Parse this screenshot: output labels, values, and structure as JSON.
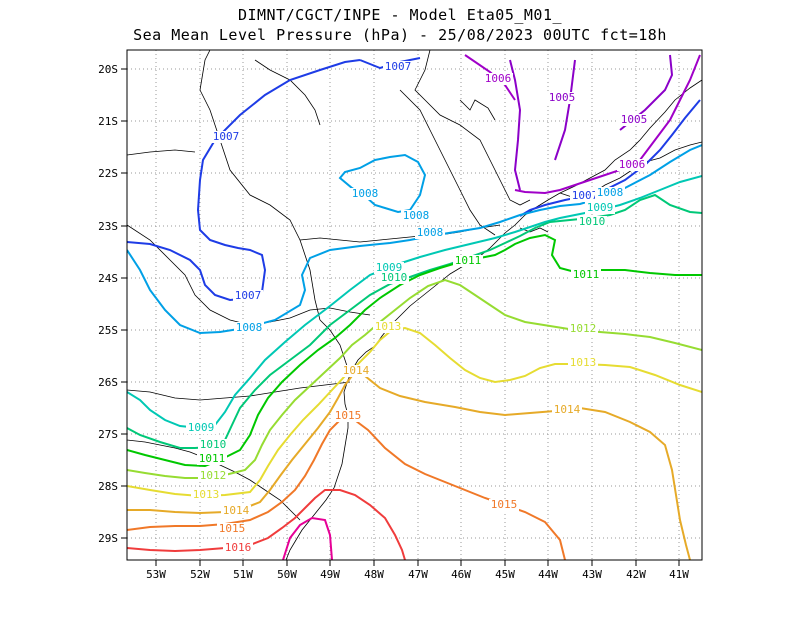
{
  "title_line1": "DIMNT/CGCT/INPE -  Model Eta05_M01_",
  "title_line2": "Sea Mean Level Pressure (hPa) - 25/08/2023 00UTC fct=18h",
  "axes": {
    "lon_ticks": [
      "53W",
      "52W",
      "51W",
      "50W",
      "49W",
      "48W",
      "47W",
      "46W",
      "45W",
      "44W",
      "43W",
      "42W",
      "41W"
    ],
    "lat_ticks": [
      "20S",
      "21S",
      "22S",
      "23S",
      "24S",
      "25S",
      "26S",
      "27S",
      "28S",
      "29S"
    ]
  },
  "contour_levels": [
    {
      "value": "1005",
      "color": "#8b00c8"
    },
    {
      "value": "1006",
      "color": "#a000c8"
    },
    {
      "value": "1007",
      "color": "#1e3ce6"
    },
    {
      "value": "1008",
      "color": "#00a0e6"
    },
    {
      "value": "1009",
      "color": "#00c8b4"
    },
    {
      "value": "1010",
      "color": "#00c878"
    },
    {
      "value": "1011",
      "color": "#00c800"
    },
    {
      "value": "1012",
      "color": "#96dc32"
    },
    {
      "value": "1013",
      "color": "#e6dc32"
    },
    {
      "value": "1014",
      "color": "#e6aa28"
    },
    {
      "value": "1015",
      "color": "#f07828"
    },
    {
      "value": "1016",
      "color": "#f03c3c"
    },
    {
      "value": "1017",
      "color": "#e60096"
    }
  ],
  "contour_labels": [
    {
      "text": "1007",
      "level": "1007"
    },
    {
      "text": "1006",
      "level": "1006"
    },
    {
      "text": "1005",
      "level": "1005"
    },
    {
      "text": "1005",
      "level": "1005"
    },
    {
      "text": "1006",
      "level": "1006"
    },
    {
      "text": "1007",
      "level": "1007"
    },
    {
      "text": "1007",
      "level": "1007"
    },
    {
      "text": "1008",
      "level": "1008"
    },
    {
      "text": "1008",
      "level": "1008"
    },
    {
      "text": "1008",
      "level": "1008"
    },
    {
      "text": "1008",
      "level": "1008"
    },
    {
      "text": "1009",
      "level": "1009"
    },
    {
      "text": "1010",
      "level": "1010"
    },
    {
      "text": "1007",
      "level": "1007"
    },
    {
      "text": "1008",
      "level": "1008"
    },
    {
      "text": "1009",
      "level": "1009"
    },
    {
      "text": "1010",
      "level": "1010"
    },
    {
      "text": "1011",
      "level": "1011"
    },
    {
      "text": "1011",
      "level": "1011"
    },
    {
      "text": "1009",
      "level": "1009"
    },
    {
      "text": "1010",
      "level": "1010"
    },
    {
      "text": "1011",
      "level": "1011"
    },
    {
      "text": "1012",
      "level": "1012"
    },
    {
      "text": "1013",
      "level": "1013"
    },
    {
      "text": "1014",
      "level": "1014"
    },
    {
      "text": "1015",
      "level": "1015"
    },
    {
      "text": "1016",
      "level": "1016"
    },
    {
      "text": "1013",
      "level": "1013"
    },
    {
      "text": "1014",
      "level": "1014"
    },
    {
      "text": "1015",
      "level": "1015"
    },
    {
      "text": "1012",
      "level": "1012"
    },
    {
      "text": "1013",
      "level": "1013"
    },
    {
      "text": "1014",
      "level": "1014"
    },
    {
      "text": "1015",
      "level": "1015"
    }
  ]
}
